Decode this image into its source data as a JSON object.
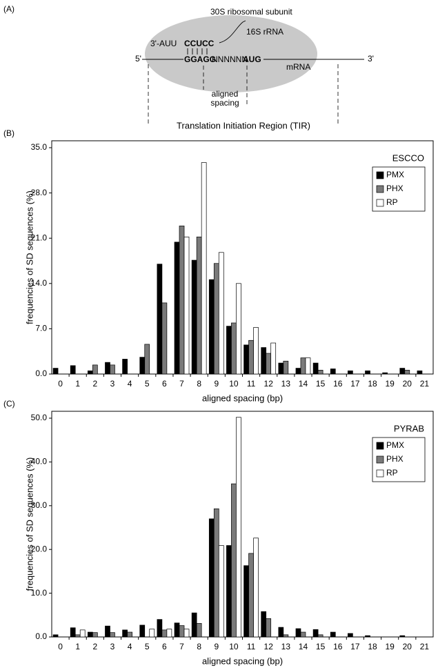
{
  "panel_a": {
    "label": "(A)",
    "subunit": "30S ribosomal subunit",
    "rrna_label": "16S rRNA",
    "rrna_start": "3'-AUU",
    "rrna_sd": "CCUCC",
    "mrna_5": "5'",
    "sd": "GGAGG",
    "spacer": "NNNNNN",
    "start_codon": "AUG",
    "mrna_label": "mRNA",
    "mrna_3": "3'",
    "spacing_label": [
      "aligned",
      "spacing"
    ],
    "tir": "Translation Initiation Region (TIR)"
  },
  "chart_data": [
    {
      "type": "bar",
      "panel_label": "(B)",
      "legend_title": "ESCCO",
      "legend": "upper right",
      "xlabel": "aligned spacing (bp)",
      "ylabel": "frequencies of SD sequences (%)",
      "categories": [
        "0",
        "1",
        "2",
        "3",
        "4",
        "5",
        "6",
        "7",
        "8",
        "9",
        "10",
        "11",
        "12",
        "13",
        "14",
        "15",
        "16",
        "17",
        "18",
        "19",
        "20",
        "21"
      ],
      "series": [
        {
          "name": "PMX",
          "color": "#000000",
          "values": [
            0.9,
            1.3,
            0.5,
            1.8,
            2.3,
            2.6,
            17.0,
            20.4,
            17.6,
            14.6,
            7.4,
            4.5,
            4.1,
            1.7,
            0.9,
            1.7,
            0.8,
            0.5,
            0.5,
            0.2,
            0.9,
            0.5
          ]
        },
        {
          "name": "PHX",
          "color": "#7a7a7a",
          "values": [
            0,
            0,
            1.4,
            1.4,
            0,
            4.6,
            11.0,
            22.9,
            21.2,
            17.1,
            7.9,
            5.2,
            3.2,
            2.0,
            2.5,
            0.6,
            0,
            0,
            0,
            0,
            0.6,
            0
          ]
        },
        {
          "name": "RP",
          "color": "#ffffff",
          "values": [
            0,
            0,
            0,
            0,
            0,
            0,
            0,
            21.2,
            32.7,
            18.8,
            14.0,
            7.2,
            4.8,
            0,
            2.5,
            0,
            0,
            0,
            0,
            0,
            0,
            0
          ]
        }
      ],
      "ylim": [
        0,
        35
      ],
      "yticks": [
        {
          "value": 0,
          "label": "0.0"
        },
        {
          "value": 7,
          "label": "7.0"
        },
        {
          "value": 14,
          "label": "14.0"
        },
        {
          "value": 21,
          "label": "21.0"
        },
        {
          "value": 28,
          "label": "28.0"
        },
        {
          "value": 35,
          "label": "35.0"
        }
      ],
      "grid": false
    },
    {
      "type": "bar",
      "panel_label": "(C)",
      "legend_title": "PYRAB",
      "legend": "upper right",
      "xlabel": "aligned spacing (bp)",
      "ylabel": "frequencies of SD sequences (%)",
      "categories": [
        "0",
        "1",
        "2",
        "3",
        "4",
        "5",
        "6",
        "7",
        "8",
        "9",
        "10",
        "11",
        "12",
        "13",
        "14",
        "15",
        "16",
        "17",
        "18",
        "19",
        "20",
        "21"
      ],
      "series": [
        {
          "name": "PMX",
          "color": "#000000",
          "values": [
            0.5,
            2.1,
            1.1,
            2.5,
            1.6,
            2.7,
            4.0,
            3.2,
            5.5,
            27.0,
            20.9,
            16.3,
            5.8,
            2.2,
            1.9,
            1.7,
            1.1,
            0.8,
            0.3,
            0,
            0.3,
            0
          ]
        },
        {
          "name": "PHX",
          "color": "#7a7a7a",
          "values": [
            0,
            0.5,
            1.0,
            1.0,
            1.1,
            0,
            1.6,
            2.6,
            3.1,
            29.3,
            35.0,
            19.1,
            4.2,
            0.5,
            1.1,
            0.5,
            0,
            0,
            0,
            0,
            0,
            0
          ]
        },
        {
          "name": "RP",
          "color": "#ffffff",
          "values": [
            0,
            1.6,
            0,
            0,
            0,
            1.8,
            1.8,
            1.8,
            0,
            20.9,
            50.2,
            22.6,
            0,
            0,
            0,
            0,
            0,
            0,
            0,
            0,
            0,
            0
          ]
        }
      ],
      "ylim": [
        0,
        50
      ],
      "yticks": [
        {
          "value": 0,
          "label": "0.0"
        },
        {
          "value": 10,
          "label": "10.0"
        },
        {
          "value": 20,
          "label": "20.0"
        },
        {
          "value": 30,
          "label": "30.0"
        },
        {
          "value": 40,
          "label": "40.0"
        },
        {
          "value": 50,
          "label": "50.0"
        }
      ],
      "grid": false
    }
  ]
}
